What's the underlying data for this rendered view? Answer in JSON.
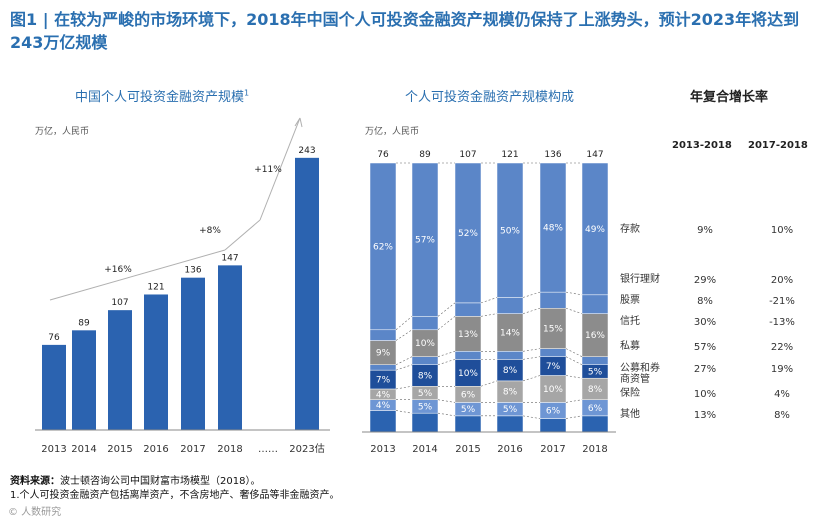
{
  "title": "图1 | 在较为严峻的市场环境下，2018年中国个人可投资金融资产规模仍保持了上涨势头，预计2023年将达到243万亿规模",
  "left": {
    "subtitle": "中国个人可投资金融资产规模",
    "footnote_mark": "1",
    "units": "万亿，人民币"
  },
  "right": {
    "subtitle": "个人可投资金融资产规模构成",
    "units": "万亿，人民币"
  },
  "growth": {
    "title": "年复合增长率",
    "col1": "2013-2018",
    "col2": "2017-2018",
    "rows": [
      {
        "label": "存款",
        "a": "9%",
        "b": "10%"
      },
      {
        "label": "银行理财",
        "a": "29%",
        "b": "20%"
      },
      {
        "label": "股票",
        "a": "8%",
        "b": "-21%"
      },
      {
        "label": "信托",
        "a": "30%",
        "b": "-13%"
      },
      {
        "label": "私募",
        "a": "57%",
        "b": "22%"
      },
      {
        "label": "公募和券商资管",
        "a": "27%",
        "b": "19%"
      },
      {
        "label": "保险",
        "a": "10%",
        "b": "4%"
      },
      {
        "label": "其他",
        "a": "13%",
        "b": "8%"
      }
    ]
  },
  "chart_data": [
    {
      "type": "bar",
      "title": "中国个人可投资金融资产规模",
      "ylabel": "万亿，人民币",
      "categories": [
        "2013",
        "2014",
        "2015",
        "2016",
        "2017",
        "2018",
        "2023估"
      ],
      "values": [
        76,
        89,
        107,
        121,
        136,
        147,
        243
      ],
      "separator": "……",
      "annotations": [
        "+16%",
        "+8%",
        "+11%"
      ],
      "color": "#2b63b0"
    },
    {
      "type": "bar",
      "title": "个人可投资金融资产规模构成",
      "ylabel": "万亿，人民币",
      "stacked": true,
      "categories": [
        "2013",
        "2014",
        "2015",
        "2016",
        "2017",
        "2018"
      ],
      "totals": [
        76,
        89,
        107,
        121,
        136,
        147
      ],
      "series": [
        {
          "name": "其他",
          "values": [
            "",
            "",
            "",
            "",
            "",
            ""
          ],
          "color": "#2b63b0"
        },
        {
          "name": "保险",
          "values": [
            "4%",
            "5%",
            "5%",
            "5%",
            "6%",
            "6%"
          ],
          "color": "#6e96d4"
        },
        {
          "name": "公募和券商资管",
          "values": [
            "4%",
            "5%",
            "6%",
            "8%",
            "10%",
            "8%"
          ],
          "color": "#a6a6a6"
        },
        {
          "name": "私募",
          "values": [
            "7%",
            "8%",
            "10%",
            "8%",
            "7%",
            "5%"
          ],
          "color": "#1f4e9a"
        },
        {
          "name": "信托",
          "values": [
            "",
            "",
            "",
            "",
            "",
            ""
          ],
          "color": "#5b86c8"
        },
        {
          "name": "股票",
          "values": [
            "9%",
            "10%",
            "13%",
            "14%",
            "15%",
            "16%"
          ],
          "color": "#8c8c8c"
        },
        {
          "name": "银行理财",
          "values": [
            "",
            "",
            "",
            "",
            "",
            ""
          ],
          "color": "#5b86c8"
        },
        {
          "name": "存款",
          "values": [
            "62%",
            "57%",
            "52%",
            "50%",
            "48%",
            "49%"
          ],
          "color": "#5b86c8"
        }
      ]
    }
  ],
  "footer": {
    "source_label": "资料来源：",
    "source_text": "波士顿咨询公司中国财富市场模型（2018）。",
    "note": "1.个人可投资金融资产包括离岸资产，不含房地产、奢侈品等非金融资产。"
  },
  "watermark": "© 人数研究"
}
